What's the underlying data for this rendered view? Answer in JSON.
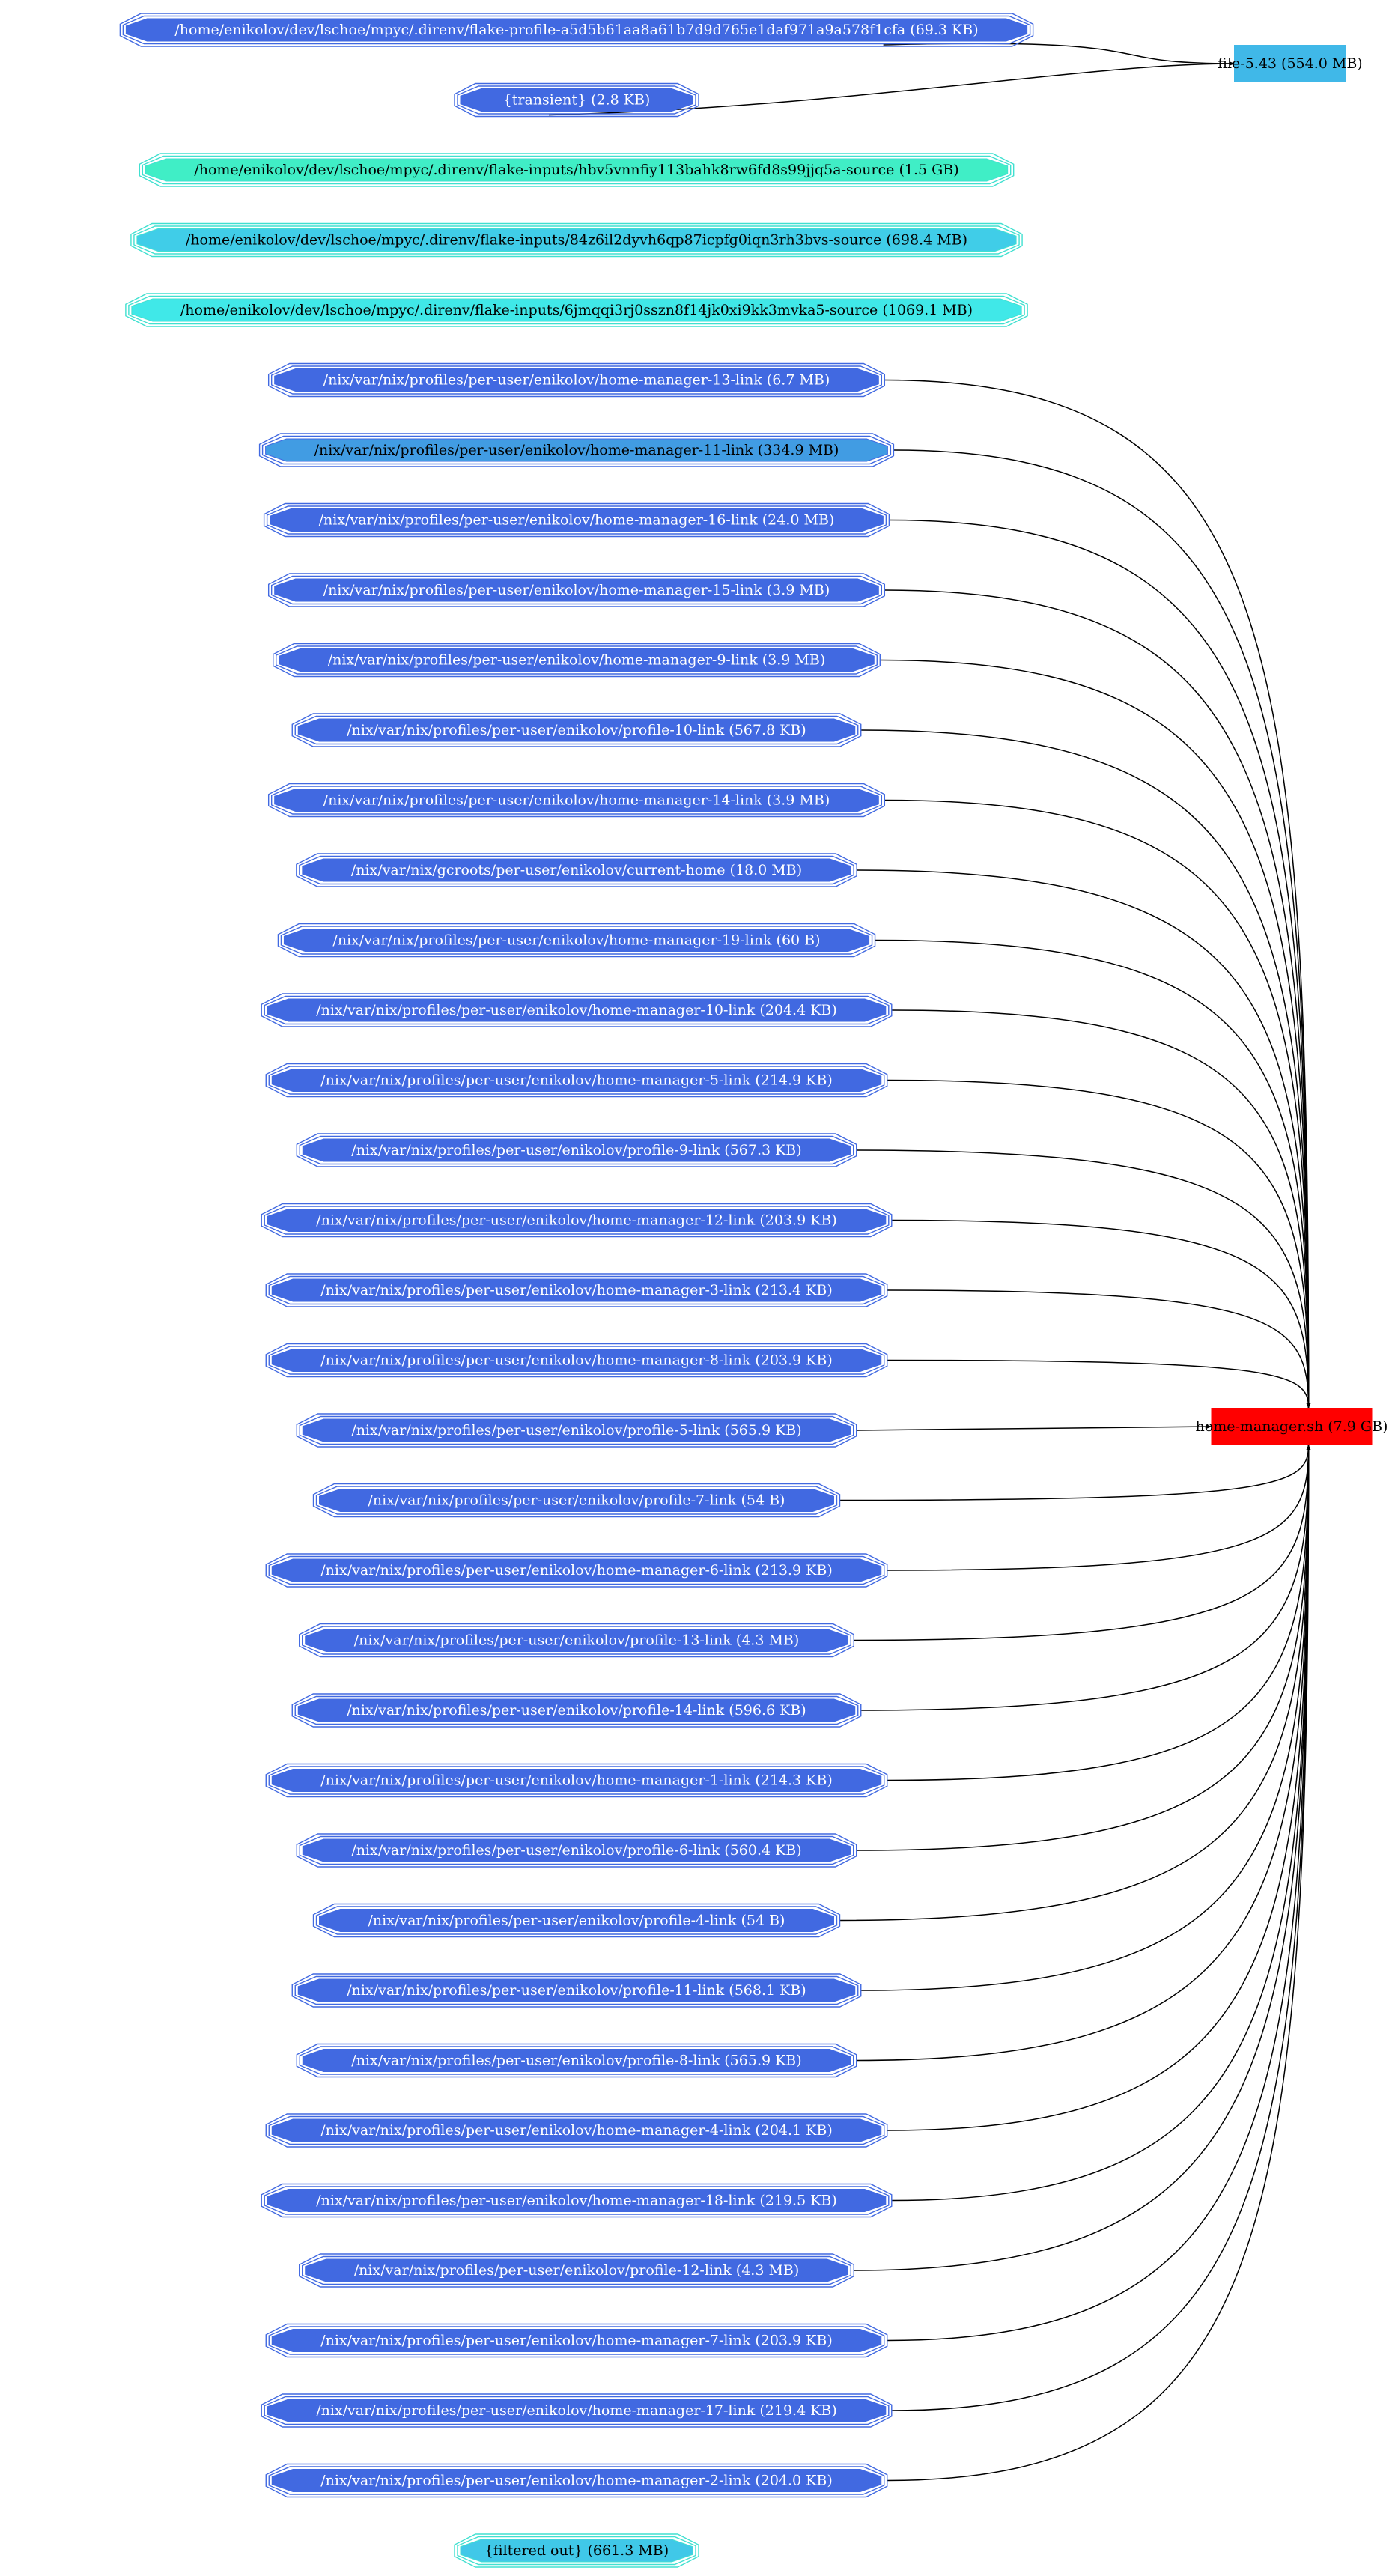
{
  "graph": {
    "roots": [
      {
        "id": "flake-profile",
        "label": "/home/enikolov/dev/lschoe/mpyc/.direnv/flake-profile-a5d5b61aa8a61b7d9d765e1daf971a9a578f1cfa (69.3 KB)",
        "fill": "#4169e1",
        "text": "#ffffff",
        "target": "file-543"
      },
      {
        "id": "transient",
        "label": "{transient} (2.8 KB)",
        "fill": "#4169e1",
        "text": "#ffffff",
        "target": "file-543"
      },
      {
        "id": "flake-input-1",
        "label": "/home/enikolov/dev/lschoe/mpyc/.direnv/flake-inputs/hbv5vnnfiy113bahk8rw6fd8s99jjq5a-source (1.5 GB)",
        "fill": "#40eec6",
        "text": "#000000",
        "target": ""
      },
      {
        "id": "flake-input-2",
        "label": "/home/enikolov/dev/lschoe/mpyc/.direnv/flake-inputs/84z6il2dyvh6qp87icpfg0iqn3rh3bvs-source (698.4 MB)",
        "fill": "#40cde8",
        "text": "#000000",
        "target": ""
      },
      {
        "id": "flake-input-3",
        "label": "/home/enikolov/dev/lschoe/mpyc/.direnv/flake-inputs/6jmqqi3rj0sszn8f14jk0xi9kk3mvka5-source (1069.1 MB)",
        "fill": "#40e8e8",
        "text": "#000000",
        "target": ""
      },
      {
        "id": "hm-13",
        "label": "/nix/var/nix/profiles/per-user/enikolov/home-manager-13-link (6.7 MB)",
        "fill": "#4169e1",
        "text": "#ffffff",
        "target": "home-manager-sh"
      },
      {
        "id": "hm-11",
        "label": "/nix/var/nix/profiles/per-user/enikolov/home-manager-11-link (334.9 MB)",
        "fill": "#419ce3",
        "text": "#000000",
        "target": "home-manager-sh"
      },
      {
        "id": "hm-16",
        "label": "/nix/var/nix/profiles/per-user/enikolov/home-manager-16-link (24.0 MB)",
        "fill": "#4169e1",
        "text": "#ffffff",
        "target": "home-manager-sh"
      },
      {
        "id": "hm-15",
        "label": "/nix/var/nix/profiles/per-user/enikolov/home-manager-15-link (3.9 MB)",
        "fill": "#4169e1",
        "text": "#ffffff",
        "target": "home-manager-sh"
      },
      {
        "id": "hm-9",
        "label": "/nix/var/nix/profiles/per-user/enikolov/home-manager-9-link (3.9 MB)",
        "fill": "#4169e1",
        "text": "#ffffff",
        "target": "home-manager-sh"
      },
      {
        "id": "p-10",
        "label": "/nix/var/nix/profiles/per-user/enikolov/profile-10-link (567.8 KB)",
        "fill": "#4169e1",
        "text": "#ffffff",
        "target": "home-manager-sh"
      },
      {
        "id": "hm-14",
        "label": "/nix/var/nix/profiles/per-user/enikolov/home-manager-14-link (3.9 MB)",
        "fill": "#4169e1",
        "text": "#ffffff",
        "target": "home-manager-sh"
      },
      {
        "id": "gc-current-home",
        "label": "/nix/var/nix/gcroots/per-user/enikolov/current-home (18.0 MB)",
        "fill": "#4169e1",
        "text": "#ffffff",
        "target": "home-manager-sh"
      },
      {
        "id": "hm-19",
        "label": "/nix/var/nix/profiles/per-user/enikolov/home-manager-19-link (60 B)",
        "fill": "#4169e1",
        "text": "#ffffff",
        "target": "home-manager-sh"
      },
      {
        "id": "hm-10",
        "label": "/nix/var/nix/profiles/per-user/enikolov/home-manager-10-link (204.4 KB)",
        "fill": "#4169e1",
        "text": "#ffffff",
        "target": "home-manager-sh"
      },
      {
        "id": "hm-5",
        "label": "/nix/var/nix/profiles/per-user/enikolov/home-manager-5-link (214.9 KB)",
        "fill": "#4169e1",
        "text": "#ffffff",
        "target": "home-manager-sh"
      },
      {
        "id": "p-9",
        "label": "/nix/var/nix/profiles/per-user/enikolov/profile-9-link (567.3 KB)",
        "fill": "#4169e1",
        "text": "#ffffff",
        "target": "home-manager-sh"
      },
      {
        "id": "hm-12",
        "label": "/nix/var/nix/profiles/per-user/enikolov/home-manager-12-link (203.9 KB)",
        "fill": "#4169e1",
        "text": "#ffffff",
        "target": "home-manager-sh"
      },
      {
        "id": "hm-3",
        "label": "/nix/var/nix/profiles/per-user/enikolov/home-manager-3-link (213.4 KB)",
        "fill": "#4169e1",
        "text": "#ffffff",
        "target": "home-manager-sh"
      },
      {
        "id": "hm-8",
        "label": "/nix/var/nix/profiles/per-user/enikolov/home-manager-8-link (203.9 KB)",
        "fill": "#4169e1",
        "text": "#ffffff",
        "target": "home-manager-sh"
      },
      {
        "id": "p-5",
        "label": "/nix/var/nix/profiles/per-user/enikolov/profile-5-link (565.9 KB)",
        "fill": "#4169e1",
        "text": "#ffffff",
        "target": "home-manager-sh"
      },
      {
        "id": "p-7",
        "label": "/nix/var/nix/profiles/per-user/enikolov/profile-7-link (54 B)",
        "fill": "#4169e1",
        "text": "#ffffff",
        "target": "home-manager-sh"
      },
      {
        "id": "hm-6",
        "label": "/nix/var/nix/profiles/per-user/enikolov/home-manager-6-link (213.9 KB)",
        "fill": "#4169e1",
        "text": "#ffffff",
        "target": "home-manager-sh"
      },
      {
        "id": "p-13",
        "label": "/nix/var/nix/profiles/per-user/enikolov/profile-13-link (4.3 MB)",
        "fill": "#4169e1",
        "text": "#ffffff",
        "target": "home-manager-sh"
      },
      {
        "id": "p-14",
        "label": "/nix/var/nix/profiles/per-user/enikolov/profile-14-link (596.6 KB)",
        "fill": "#4169e1",
        "text": "#ffffff",
        "target": "home-manager-sh"
      },
      {
        "id": "hm-1",
        "label": "/nix/var/nix/profiles/per-user/enikolov/home-manager-1-link (214.3 KB)",
        "fill": "#4169e1",
        "text": "#ffffff",
        "target": "home-manager-sh"
      },
      {
        "id": "p-6",
        "label": "/nix/var/nix/profiles/per-user/enikolov/profile-6-link (560.4 KB)",
        "fill": "#4169e1",
        "text": "#ffffff",
        "target": "home-manager-sh"
      },
      {
        "id": "p-4",
        "label": "/nix/var/nix/profiles/per-user/enikolov/profile-4-link (54 B)",
        "fill": "#4169e1",
        "text": "#ffffff",
        "target": "home-manager-sh"
      },
      {
        "id": "p-11",
        "label": "/nix/var/nix/profiles/per-user/enikolov/profile-11-link (568.1 KB)",
        "fill": "#4169e1",
        "text": "#ffffff",
        "target": "home-manager-sh"
      },
      {
        "id": "p-8",
        "label": "/nix/var/nix/profiles/per-user/enikolov/profile-8-link (565.9 KB)",
        "fill": "#4169e1",
        "text": "#ffffff",
        "target": "home-manager-sh"
      },
      {
        "id": "hm-4",
        "label": "/nix/var/nix/profiles/per-user/enikolov/home-manager-4-link (204.1 KB)",
        "fill": "#4169e1",
        "text": "#ffffff",
        "target": "home-manager-sh"
      },
      {
        "id": "hm-18",
        "label": "/nix/var/nix/profiles/per-user/enikolov/home-manager-18-link (219.5 KB)",
        "fill": "#4169e1",
        "text": "#ffffff",
        "target": "home-manager-sh"
      },
      {
        "id": "p-12",
        "label": "/nix/var/nix/profiles/per-user/enikolov/profile-12-link (4.3 MB)",
        "fill": "#4169e1",
        "text": "#ffffff",
        "target": "home-manager-sh"
      },
      {
        "id": "hm-7",
        "label": "/nix/var/nix/profiles/per-user/enikolov/home-manager-7-link (203.9 KB)",
        "fill": "#4169e1",
        "text": "#ffffff",
        "target": "home-manager-sh"
      },
      {
        "id": "hm-17",
        "label": "/nix/var/nix/profiles/per-user/enikolov/home-manager-17-link (219.4 KB)",
        "fill": "#4169e1",
        "text": "#ffffff",
        "target": "home-manager-sh"
      },
      {
        "id": "hm-2",
        "label": "/nix/var/nix/profiles/per-user/enikolov/home-manager-2-link (204.0 KB)",
        "fill": "#4169e1",
        "text": "#ffffff",
        "target": "home-manager-sh"
      },
      {
        "id": "filtered-out",
        "label": "{filtered out} (661.3 MB)",
        "fill": "#40c8e8",
        "text": "#000000",
        "target": ""
      }
    ],
    "targets": [
      {
        "id": "file-543",
        "label": "file-5.43 (554.0 MB)",
        "fill": "#40b8e8",
        "text": "#000000"
      },
      {
        "id": "home-manager-sh",
        "label": "home-manager.sh (7.9 GB)",
        "fill": "#ff0000",
        "text": "#000000"
      }
    ],
    "colors": {
      "edge": "#000000",
      "octagon_border_blue": "#4169e1",
      "octagon_border_cyan": "#40e0d0"
    }
  }
}
